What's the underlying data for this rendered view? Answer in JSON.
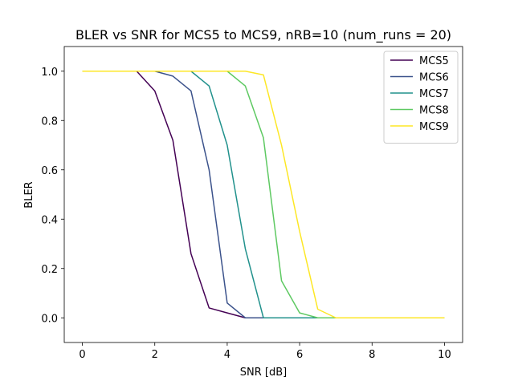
{
  "chart_data": {
    "type": "line",
    "title": "BLER vs SNR for MCS5 to MCS9, nRB=10 (num_runs = 20)",
    "xlabel": "SNR [dB]",
    "ylabel": "BLER",
    "xlim": [
      -0.5,
      10.5
    ],
    "ylim": [
      -0.1,
      1.1
    ],
    "xticks": [
      0,
      2,
      4,
      6,
      8,
      10
    ],
    "yticks": [
      0.0,
      0.2,
      0.4,
      0.6,
      0.8,
      1.0
    ],
    "xtick_labels": [
      "0",
      "2",
      "4",
      "6",
      "8",
      "10"
    ],
    "ytick_labels": [
      "0.0",
      "0.2",
      "0.4",
      "0.6",
      "0.8",
      "1.0"
    ],
    "grid": false,
    "legend_position": "top-right",
    "x": [
      0,
      0.5,
      1,
      1.5,
      2,
      2.5,
      3,
      3.5,
      4,
      4.5,
      5,
      5.5,
      6,
      6.5,
      7,
      7.5,
      8,
      8.5,
      9,
      9.5,
      10
    ],
    "series": [
      {
        "name": "MCS5",
        "color": "#440154",
        "values": [
          1,
          1,
          1,
          1,
          0.92,
          0.72,
          0.26,
          0.04,
          0.02,
          0,
          0,
          0,
          0,
          0,
          0,
          0,
          0,
          0,
          0,
          0,
          0
        ]
      },
      {
        "name": "MCS6",
        "color": "#3b528b",
        "values": [
          1,
          1,
          1,
          1,
          1,
          0.98,
          0.92,
          0.6,
          0.06,
          0,
          0,
          0,
          0,
          0,
          0,
          0,
          0,
          0,
          0,
          0,
          0
        ]
      },
      {
        "name": "MCS7",
        "color": "#21918c",
        "values": [
          1,
          1,
          1,
          1,
          1,
          1,
          1,
          0.94,
          0.7,
          0.28,
          0,
          0,
          0,
          0,
          0,
          0,
          0,
          0,
          0,
          0,
          0
        ]
      },
      {
        "name": "MCS8",
        "color": "#5ec962",
        "values": [
          1,
          1,
          1,
          1,
          1,
          1,
          1,
          1,
          1,
          0.94,
          0.73,
          0.15,
          0.02,
          0,
          0,
          0,
          0,
          0,
          0,
          0,
          0
        ]
      },
      {
        "name": "MCS9",
        "color": "#fde725",
        "values": [
          1,
          1,
          1,
          1,
          1,
          1,
          1,
          1,
          1,
          1,
          0.985,
          0.7,
          0.35,
          0.035,
          0,
          0,
          0,
          0,
          0,
          0,
          0
        ]
      }
    ]
  }
}
